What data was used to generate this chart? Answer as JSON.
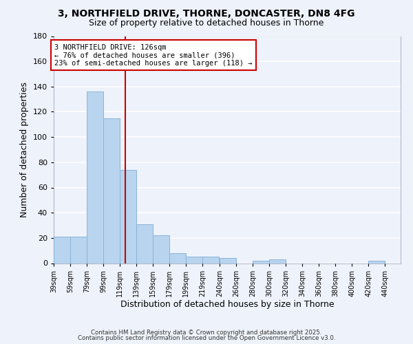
{
  "title1": "3, NORTHFIELD DRIVE, THORNE, DONCASTER, DN8 4FG",
  "title2": "Size of property relative to detached houses in Thorne",
  "xlabel": "Distribution of detached houses by size in Thorne",
  "ylabel": "Number of detached properties",
  "bar_left_edges": [
    39,
    59,
    79,
    99,
    119,
    139,
    159,
    179,
    199,
    219,
    240,
    260,
    280,
    300,
    320,
    340,
    360,
    380,
    400,
    420
  ],
  "bar_heights": [
    21,
    21,
    136,
    115,
    74,
    31,
    22,
    8,
    5,
    5,
    4,
    0,
    2,
    3,
    0,
    0,
    0,
    0,
    0,
    2
  ],
  "bar_widths": [
    20,
    20,
    20,
    20,
    20,
    20,
    20,
    20,
    20,
    20,
    20,
    20,
    20,
    20,
    20,
    20,
    20,
    20,
    20,
    20
  ],
  "tick_labels": [
    "39sqm",
    "59sqm",
    "79sqm",
    "99sqm",
    "119sqm",
    "139sqm",
    "159sqm",
    "179sqm",
    "199sqm",
    "219sqm",
    "240sqm",
    "260sqm",
    "280sqm",
    "300sqm",
    "320sqm",
    "340sqm",
    "360sqm",
    "380sqm",
    "400sqm",
    "420sqm",
    "440sqm"
  ],
  "tick_positions": [
    39,
    59,
    79,
    99,
    119,
    139,
    159,
    179,
    199,
    219,
    240,
    260,
    280,
    300,
    320,
    340,
    360,
    380,
    400,
    420,
    440
  ],
  "bar_color": "#b8d4ee",
  "bar_edgecolor": "#8ab4d8",
  "vline_x": 126,
  "vline_color": "#cc0000",
  "annotation_text": "3 NORTHFIELD DRIVE: 126sqm\n← 76% of detached houses are smaller (396)\n23% of semi-detached houses are larger (118) →",
  "annotation_box_color": "#ffffff",
  "annotation_box_edgecolor": "#cc0000",
  "annotation_fontsize": 7.5,
  "ylim": [
    0,
    180
  ],
  "xlim": [
    39,
    459
  ],
  "background_color": "#eef2fa",
  "grid_color": "#ffffff",
  "footnote1": "Contains HM Land Registry data © Crown copyright and database right 2025.",
  "footnote2": "Contains public sector information licensed under the Open Government Licence v3.0.",
  "title1_fontsize": 10,
  "title2_fontsize": 9
}
